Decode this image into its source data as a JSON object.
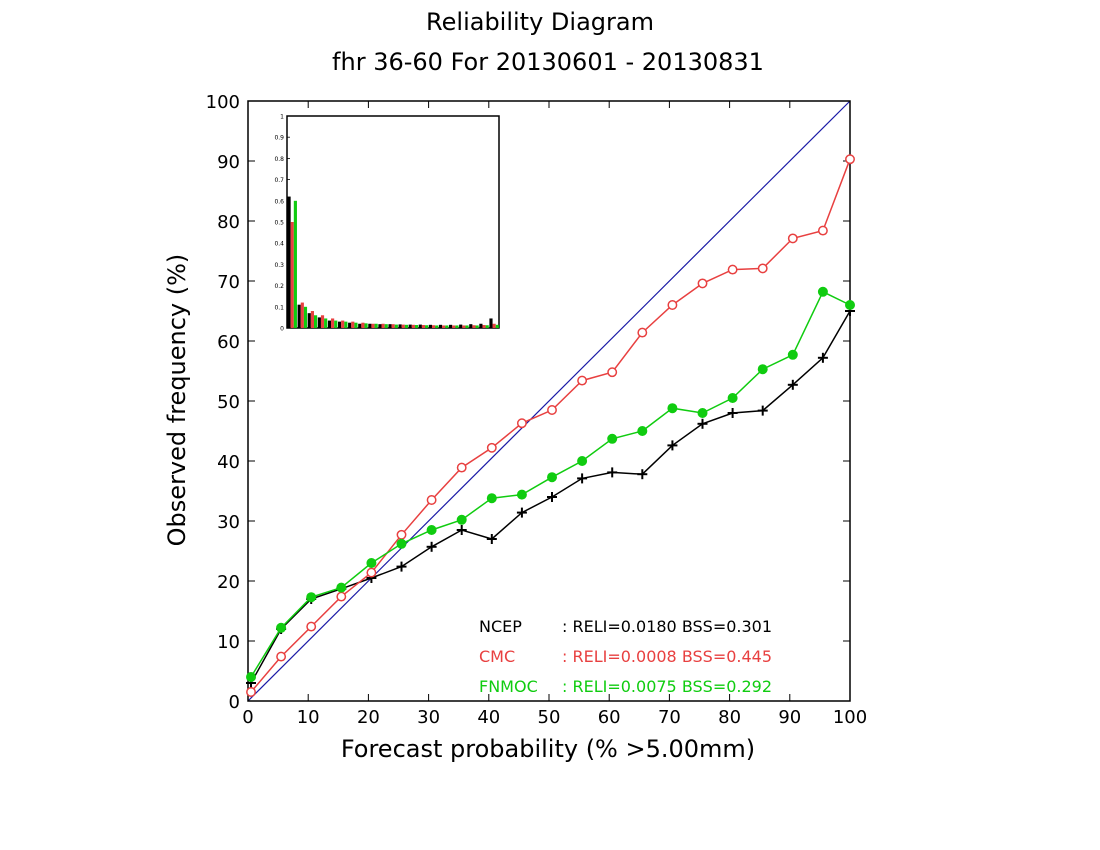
{
  "chart_data": {
    "type": "line",
    "title": "Reliability Diagram",
    "subtitle": "fhr 36-60 For 20130601 - 20130831",
    "xlabel": "Forecast probability (% >5.00mm)",
    "ylabel": "Observed frequency (%)",
    "xlim": [
      0,
      100
    ],
    "ylim": [
      0,
      100
    ],
    "x_ticks": [
      0,
      10,
      20,
      30,
      40,
      50,
      60,
      70,
      80,
      90,
      100
    ],
    "y_ticks": [
      0,
      10,
      20,
      30,
      40,
      50,
      60,
      70,
      80,
      90,
      100
    ],
    "grid": false,
    "diagonal_color": "#1a1aa6",
    "series": [
      {
        "name": "NCEP",
        "color": "#000000",
        "marker": "plus",
        "stats": ": RELI=0.0180 BSS=0.301",
        "x": [
          0.5,
          5.5,
          10.5,
          15.5,
          20.5,
          25.5,
          30.5,
          35.5,
          40.5,
          45.5,
          50.5,
          55.5,
          60.5,
          65.5,
          70.5,
          75.5,
          80.5,
          85.5,
          90.5,
          95.5,
          100
        ],
        "y": [
          3,
          12,
          17,
          18.7,
          20.5,
          22.4,
          25.7,
          28.5,
          27.0,
          31.4,
          34.0,
          37.1,
          38.1,
          37.8,
          42.6,
          46.2,
          48.0,
          48.4,
          52.7,
          57.2,
          65.0
        ]
      },
      {
        "name": "CMC",
        "color": "#e84040",
        "marker": "open-circle",
        "stats": ": RELI=0.0008 BSS=0.445",
        "x": [
          0.5,
          5.5,
          10.5,
          15.5,
          20.5,
          25.5,
          30.5,
          35.5,
          40.5,
          45.5,
          50.5,
          55.5,
          60.5,
          65.5,
          70.5,
          75.5,
          80.5,
          85.5,
          90.5,
          95.5,
          100
        ],
        "y": [
          1.5,
          7.4,
          12.4,
          17.4,
          21.4,
          27.7,
          33.5,
          38.9,
          42.2,
          46.3,
          48.5,
          53.4,
          54.8,
          61.4,
          66.0,
          69.6,
          71.9,
          72.1,
          77.1,
          78.4,
          90.3
        ]
      },
      {
        "name": "FNMOC",
        "color": "#10cc10",
        "marker": "filled-circle",
        "stats": ": RELI=0.0075 BSS=0.292",
        "x": [
          0.5,
          5.5,
          10.5,
          15.5,
          20.5,
          25.5,
          30.5,
          35.5,
          40.5,
          45.5,
          50.5,
          55.5,
          60.5,
          65.5,
          70.5,
          75.5,
          80.5,
          85.5,
          90.5,
          95.5,
          100
        ],
        "y": [
          4,
          12.2,
          17.3,
          18.9,
          23.0,
          26.2,
          28.5,
          30.2,
          33.8,
          34.4,
          37.3,
          40.0,
          43.7,
          45.0,
          48.8,
          48.0,
          50.5,
          55.3,
          57.7,
          68.2,
          66.0
        ]
      }
    ],
    "inset": {
      "type": "bar",
      "description_ticks": [
        "0",
        "0.1",
        "0.2",
        "0.3",
        "0.4",
        "0.5",
        "0.6",
        "0.7",
        "0.8",
        "0.9",
        "1"
      ],
      "ylim": [
        0,
        1
      ],
      "bins": 21,
      "series": [
        {
          "name": "NCEP",
          "color": "#000000",
          "values": [
            0.62,
            0.11,
            0.07,
            0.05,
            0.035,
            0.03,
            0.025,
            0.02,
            0.02,
            0.018,
            0.018,
            0.017,
            0.016,
            0.016,
            0.015,
            0.015,
            0.015,
            0.016,
            0.018,
            0.02,
            0.045
          ]
        },
        {
          "name": "CMC",
          "color": "#e84040",
          "values": [
            0.5,
            0.12,
            0.08,
            0.06,
            0.045,
            0.035,
            0.03,
            0.025,
            0.02,
            0.02,
            0.018,
            0.016,
            0.015,
            0.014,
            0.013,
            0.012,
            0.012,
            0.012,
            0.013,
            0.014,
            0.02
          ]
        },
        {
          "name": "FNMOC",
          "color": "#10cc10",
          "values": [
            0.6,
            0.1,
            0.06,
            0.045,
            0.035,
            0.03,
            0.025,
            0.022,
            0.02,
            0.018,
            0.016,
            0.015,
            0.014,
            0.013,
            0.012,
            0.012,
            0.012,
            0.012,
            0.012,
            0.013,
            0.015
          ]
        }
      ]
    }
  }
}
